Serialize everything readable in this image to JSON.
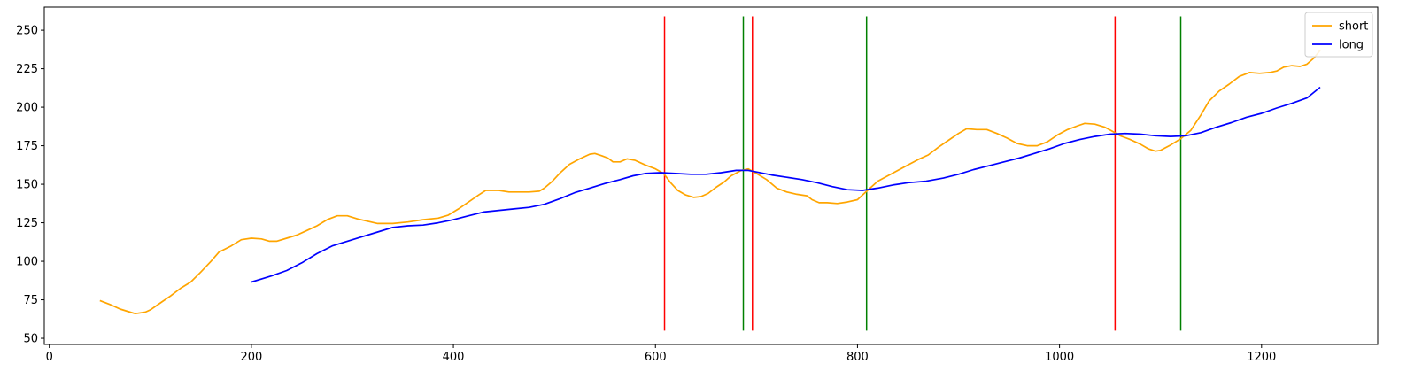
{
  "chart_data": {
    "type": "line",
    "title": "",
    "xlabel": "",
    "ylabel": "",
    "xlim": [
      -5,
      1315
    ],
    "ylim": [
      46,
      265
    ],
    "xticks": [
      0,
      200,
      400,
      600,
      800,
      1000,
      1200
    ],
    "yticks": [
      50,
      75,
      100,
      125,
      150,
      175,
      200,
      225,
      250
    ],
    "grid": false,
    "legend_position": "top-right",
    "series": [
      {
        "name": "short",
        "color": "#ffa500",
        "points": [
          [
            50,
            74.5
          ],
          [
            60,
            72
          ],
          [
            70,
            69
          ],
          [
            80,
            67
          ],
          [
            85,
            66
          ],
          [
            95,
            67
          ],
          [
            100,
            68.5
          ],
          [
            110,
            73
          ],
          [
            120,
            77.5
          ],
          [
            130,
            82.5
          ],
          [
            140,
            86.5
          ],
          [
            150,
            93
          ],
          [
            160,
            100
          ],
          [
            168,
            106
          ],
          [
            180,
            110
          ],
          [
            190,
            114
          ],
          [
            200,
            115
          ],
          [
            210,
            114.5
          ],
          [
            218,
            113
          ],
          [
            225,
            113
          ],
          [
            235,
            115
          ],
          [
            245,
            117
          ],
          [
            255,
            120
          ],
          [
            265,
            123
          ],
          [
            275,
            127
          ],
          [
            285,
            129.5
          ],
          [
            295,
            129.5
          ],
          [
            305,
            127.5
          ],
          [
            315,
            126
          ],
          [
            325,
            124.5
          ],
          [
            340,
            124.5
          ],
          [
            355,
            125.5
          ],
          [
            370,
            127
          ],
          [
            385,
            128
          ],
          [
            395,
            130
          ],
          [
            405,
            134
          ],
          [
            415,
            138.5
          ],
          [
            425,
            143
          ],
          [
            432,
            146
          ],
          [
            445,
            146
          ],
          [
            455,
            145
          ],
          [
            465,
            145
          ],
          [
            475,
            145
          ],
          [
            485,
            145.5
          ],
          [
            490,
            147.5
          ],
          [
            498,
            152
          ],
          [
            505,
            157
          ],
          [
            515,
            163
          ],
          [
            525,
            166.5
          ],
          [
            535,
            169.5
          ],
          [
            540,
            170
          ],
          [
            547,
            168.5
          ],
          [
            553,
            167
          ],
          [
            558,
            164.5
          ],
          [
            565,
            164.5
          ],
          [
            572,
            166.5
          ],
          [
            580,
            165.5
          ],
          [
            590,
            162.5
          ],
          [
            600,
            160
          ],
          [
            608,
            157
          ],
          [
            615,
            151
          ],
          [
            622,
            146
          ],
          [
            630,
            143
          ],
          [
            638,
            141.5
          ],
          [
            645,
            142
          ],
          [
            652,
            144
          ],
          [
            660,
            148
          ],
          [
            668,
            151.5
          ],
          [
            675,
            155.5
          ],
          [
            685,
            159
          ],
          [
            692,
            160
          ],
          [
            700,
            157
          ],
          [
            710,
            153
          ],
          [
            720,
            147.5
          ],
          [
            730,
            145
          ],
          [
            740,
            143.5
          ],
          [
            750,
            142.5
          ],
          [
            755,
            140
          ],
          [
            762,
            138
          ],
          [
            770,
            138
          ],
          [
            780,
            137.5
          ],
          [
            790,
            138.5
          ],
          [
            800,
            140
          ],
          [
            810,
            146
          ],
          [
            820,
            152
          ],
          [
            830,
            155.5
          ],
          [
            840,
            159
          ],
          [
            850,
            162.5
          ],
          [
            860,
            166
          ],
          [
            870,
            169
          ],
          [
            880,
            174
          ],
          [
            890,
            178.5
          ],
          [
            900,
            183
          ],
          [
            908,
            186
          ],
          [
            918,
            185.5
          ],
          [
            928,
            185.5
          ],
          [
            938,
            183
          ],
          [
            948,
            180
          ],
          [
            958,
            176.5
          ],
          [
            968,
            175
          ],
          [
            978,
            175
          ],
          [
            988,
            177.5
          ],
          [
            998,
            182
          ],
          [
            1008,
            185.5
          ],
          [
            1018,
            188
          ],
          [
            1025,
            189.5
          ],
          [
            1035,
            189
          ],
          [
            1045,
            187
          ],
          [
            1052,
            184.5
          ],
          [
            1060,
            181.5
          ],
          [
            1070,
            179
          ],
          [
            1080,
            176
          ],
          [
            1088,
            173
          ],
          [
            1095,
            171.5
          ],
          [
            1100,
            172
          ],
          [
            1110,
            175.5
          ],
          [
            1120,
            179.5
          ],
          [
            1130,
            185
          ],
          [
            1140,
            195
          ],
          [
            1148,
            204
          ],
          [
            1158,
            210.5
          ],
          [
            1168,
            215
          ],
          [
            1178,
            220
          ],
          [
            1188,
            222.5
          ],
          [
            1198,
            222
          ],
          [
            1208,
            222.5
          ],
          [
            1215,
            223.5
          ],
          [
            1222,
            226
          ],
          [
            1230,
            227
          ],
          [
            1238,
            226.5
          ],
          [
            1245,
            228
          ],
          [
            1252,
            232
          ],
          [
            1258,
            237
          ]
        ]
      },
      {
        "name": "long",
        "color": "#0000ff",
        "points": [
          [
            200,
            86.5
          ],
          [
            210,
            88.5
          ],
          [
            220,
            90.5
          ],
          [
            235,
            94
          ],
          [
            250,
            99
          ],
          [
            265,
            105
          ],
          [
            280,
            110
          ],
          [
            295,
            113
          ],
          [
            310,
            116
          ],
          [
            325,
            119
          ],
          [
            340,
            122
          ],
          [
            355,
            123
          ],
          [
            370,
            123.5
          ],
          [
            385,
            125
          ],
          [
            400,
            127
          ],
          [
            415,
            129.5
          ],
          [
            430,
            132
          ],
          [
            445,
            133
          ],
          [
            460,
            134
          ],
          [
            475,
            135
          ],
          [
            490,
            137
          ],
          [
            505,
            140.5
          ],
          [
            520,
            144.5
          ],
          [
            535,
            147.5
          ],
          [
            550,
            150.5
          ],
          [
            565,
            153
          ],
          [
            578,
            155.5
          ],
          [
            590,
            157
          ],
          [
            605,
            157.5
          ],
          [
            620,
            157
          ],
          [
            635,
            156.5
          ],
          [
            650,
            156.5
          ],
          [
            665,
            157.5
          ],
          [
            680,
            159
          ],
          [
            692,
            159
          ],
          [
            700,
            158
          ],
          [
            715,
            156
          ],
          [
            730,
            154.5
          ],
          [
            745,
            153
          ],
          [
            760,
            151
          ],
          [
            775,
            148.5
          ],
          [
            790,
            146.5
          ],
          [
            805,
            146
          ],
          [
            820,
            147.5
          ],
          [
            835,
            149.5
          ],
          [
            850,
            151
          ],
          [
            868,
            152
          ],
          [
            885,
            154
          ],
          [
            900,
            156.5
          ],
          [
            915,
            159.5
          ],
          [
            930,
            162
          ],
          [
            945,
            164.5
          ],
          [
            960,
            167
          ],
          [
            975,
            170
          ],
          [
            990,
            173
          ],
          [
            1005,
            176.5
          ],
          [
            1020,
            179
          ],
          [
            1035,
            181
          ],
          [
            1050,
            182.5
          ],
          [
            1065,
            183
          ],
          [
            1080,
            182.5
          ],
          [
            1095,
            181.5
          ],
          [
            1110,
            181
          ],
          [
            1125,
            181.5
          ],
          [
            1140,
            183.5
          ],
          [
            1155,
            187
          ],
          [
            1170,
            190
          ],
          [
            1185,
            193.5
          ],
          [
            1200,
            196
          ],
          [
            1215,
            199.5
          ],
          [
            1230,
            202.5
          ],
          [
            1245,
            206
          ],
          [
            1258,
            213
          ]
        ]
      }
    ],
    "vertical_lines": [
      {
        "x": 609,
        "ymin": 55,
        "ymax": 259,
        "color": "#ff0000"
      },
      {
        "x": 687,
        "ymin": 55,
        "ymax": 259,
        "color": "#008000"
      },
      {
        "x": 696,
        "ymin": 55,
        "ymax": 259,
        "color": "#ff0000"
      },
      {
        "x": 809,
        "ymin": 55,
        "ymax": 259,
        "color": "#008000"
      },
      {
        "x": 1055,
        "ymin": 55,
        "ymax": 259,
        "color": "#ff0000"
      },
      {
        "x": 1120,
        "ymin": 55,
        "ymax": 259,
        "color": "#008000"
      }
    ]
  }
}
